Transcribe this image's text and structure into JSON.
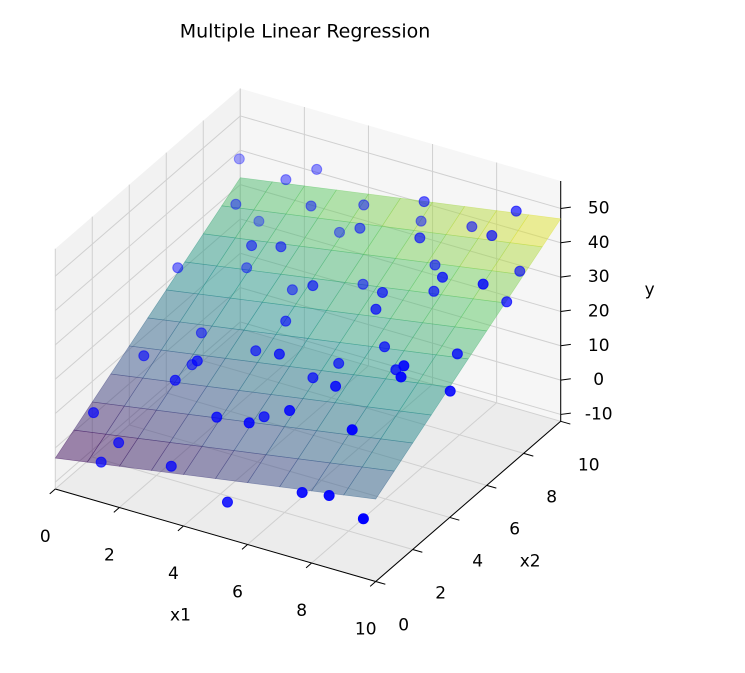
{
  "chart_data": {
    "type": "scatter3d",
    "title": "Multiple Linear Regression",
    "xlabel": "x1",
    "ylabel": "x2",
    "zlabel": "y",
    "xlim": [
      0,
      10
    ],
    "ylim": [
      0,
      10
    ],
    "zlim": [
      -12,
      58
    ],
    "xticks": [
      0,
      2,
      4,
      6,
      8,
      10
    ],
    "yticks": [
      0,
      2,
      4,
      6,
      8,
      10
    ],
    "zticks": [
      -10,
      0,
      10,
      20,
      30,
      40,
      50
    ],
    "grid": true,
    "point_color": "#0000ff",
    "surface_colormap": "viridis",
    "surface": {
      "x": [
        0,
        10
      ],
      "y": [
        0,
        10
      ],
      "z": [
        [
          -3,
          12
        ],
        [
          32,
          47
        ]
      ]
    },
    "points": {
      "x1": [
        0.5,
        1.2,
        2.3,
        3.1,
        4.0,
        5.2,
        6.1,
        7.3,
        8.4,
        9.5,
        0.8,
        1.9,
        2.7,
        3.6,
        4.8,
        5.5,
        6.9,
        7.8,
        8.8,
        9.9,
        0.3,
        1.5,
        2.2,
        3.9,
        4.4,
        5.9,
        6.4,
        7.1,
        8.1,
        9.2,
        0.9,
        1.7,
        2.9,
        3.3,
        4.6,
        5.1,
        6.7,
        7.6,
        8.6,
        9.7,
        0.2,
        1.1,
        2.5,
        3.5,
        4.2,
        5.7,
        6.2,
        7.4,
        8.9,
        9.3,
        1.4,
        3.0,
        4.9,
        6.6,
        8.2,
        9.0,
        2.0,
        5.3,
        7.0,
        9.6
      ],
      "x2": [
        1.2,
        0.4,
        2.5,
        0.9,
        1.8,
        0.3,
        2.1,
        0.7,
        1.5,
        0.2,
        3.4,
        4.1,
        3.0,
        4.6,
        3.8,
        4.4,
        3.2,
        4.9,
        3.6,
        4.2,
        6.1,
        5.3,
        6.8,
        5.7,
        6.3,
        5.1,
        6.6,
        5.5,
        6.9,
        5.8,
        8.2,
        7.4,
        8.8,
        7.1,
        8.5,
        7.8,
        8.1,
        7.3,
        8.7,
        7.6,
        9.6,
        9.1,
        9.8,
        9.3,
        9.4,
        9.9,
        9.2,
        9.7,
        9.5,
        9.0,
        1.0,
        7.0,
        2.8,
        5.9,
        0.6,
        3.1,
        9.0,
        1.3,
        8.4,
        6.5
      ],
      "y": [
        6.0,
        -2.8,
        14.2,
        -1.2,
        11.3,
        -3.2,
        17.5,
        3.4,
        20.9,
        4.0,
        13.1,
        10.2,
        18.6,
        16.5,
        22.5,
        14.7,
        21.6,
        20.9,
        30.8,
        23.6,
        24.8,
        12.8,
        33.1,
        20.8,
        29.7,
        16.7,
        31.7,
        22.9,
        39.3,
        25.1,
        35.1,
        22.5,
        37.2,
        21.8,
        36.7,
        25.0,
        41.4,
        32.0,
        44.4,
        33.2,
        39.9,
        26.5,
        42.1,
        28.8,
        38.2,
        35.2,
        45.5,
        39.1,
        48.6,
        34.5,
        0.6,
        34.0,
        9.2,
        30.6,
        5.4,
        30.4,
        41.5,
        15.5,
        32.9,
        43.2
      ]
    }
  }
}
